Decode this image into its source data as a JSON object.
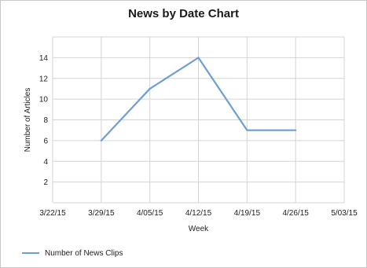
{
  "chart_data": {
    "type": "line",
    "title": "News by Date Chart",
    "xlabel": "Week",
    "ylabel": "Number of Articles",
    "x_ticks": [
      "3/22/15",
      "3/29/15",
      "4/05/15",
      "4/12/15",
      "4/19/15",
      "4/26/15",
      "5/03/15"
    ],
    "y_ticks": [
      2,
      4,
      6,
      8,
      10,
      12,
      14
    ],
    "ylim": [
      0,
      16
    ],
    "grid": true,
    "legend_position": "bottom-left",
    "series": [
      {
        "name": "Number of News Clips",
        "color": "#6f9dd0",
        "x": [
          "3/29/15",
          "4/05/15",
          "4/12/15",
          "4/19/15",
          "4/26/15"
        ],
        "y": [
          6,
          11,
          14,
          7,
          7
        ]
      }
    ]
  }
}
